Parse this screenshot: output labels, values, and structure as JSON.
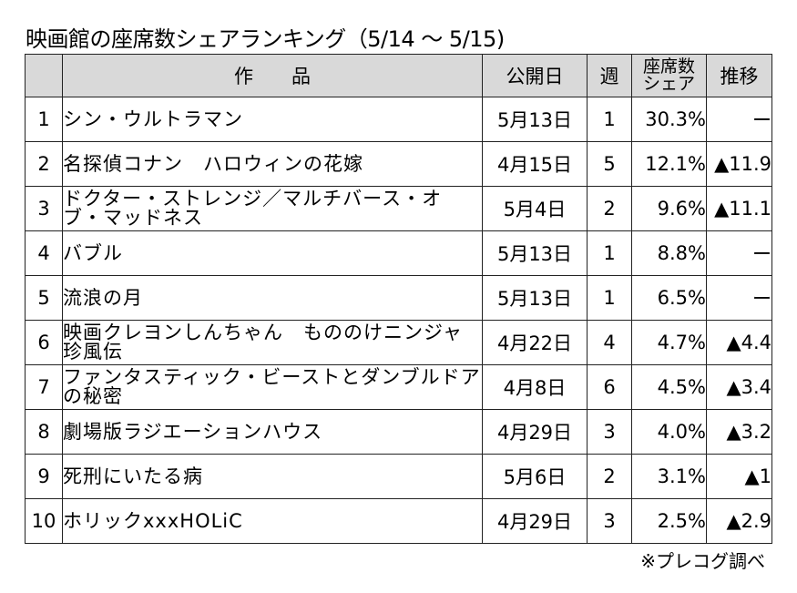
{
  "title": "映画館の座席数シェアランキング（5/14 ～ 5/15)",
  "headers": {
    "rank": "",
    "title": "作品",
    "release": "公開日",
    "week": "週",
    "share_line1": "座席数",
    "share_line2": "シェア",
    "trend": "推移"
  },
  "rows": [
    {
      "rank": "1",
      "title": "シン・ウルトラマン",
      "release": "5月13日",
      "week": "1",
      "share": "30.3%",
      "trend": "ー"
    },
    {
      "rank": "2",
      "title": "名探偵コナン　ハロウィンの花嫁",
      "release": "4月15日",
      "week": "5",
      "share": "12.1%",
      "trend": "▲11.9"
    },
    {
      "rank": "3",
      "title": "ドクター・ストレンジ／マルチバース・オブ・マッドネス",
      "release": "5月4日",
      "week": "2",
      "share": "9.6%",
      "trend": "▲11.1"
    },
    {
      "rank": "4",
      "title": "バブル",
      "release": "5月13日",
      "week": "1",
      "share": "8.8%",
      "trend": "ー"
    },
    {
      "rank": "5",
      "title": "流浪の月",
      "release": "5月13日",
      "week": "1",
      "share": "6.5%",
      "trend": "ー"
    },
    {
      "rank": "6",
      "title": "映画クレヨンしんちゃん　もののけニンジャ珍風伝",
      "release": "4月22日",
      "week": "4",
      "share": "4.7%",
      "trend": "▲4.4"
    },
    {
      "rank": "7",
      "title": "ファンタスティック・ビーストとダンブルドアの秘密",
      "release": "4月8日",
      "week": "6",
      "share": "4.5%",
      "trend": "▲3.4"
    },
    {
      "rank": "8",
      "title": "劇場版ラジエーションハウス",
      "release": "4月29日",
      "week": "3",
      "share": "4.0%",
      "trend": "▲3.2"
    },
    {
      "rank": "9",
      "title": "死刑にいたる病",
      "release": "5月6日",
      "week": "2",
      "share": "3.1%",
      "trend": "▲1"
    },
    {
      "rank": "10",
      "title": "ホリックxxxHOLiC",
      "release": "4月29日",
      "week": "3",
      "share": "2.5%",
      "trend": "▲2.9"
    }
  ],
  "source": "※プレコグ調べ"
}
